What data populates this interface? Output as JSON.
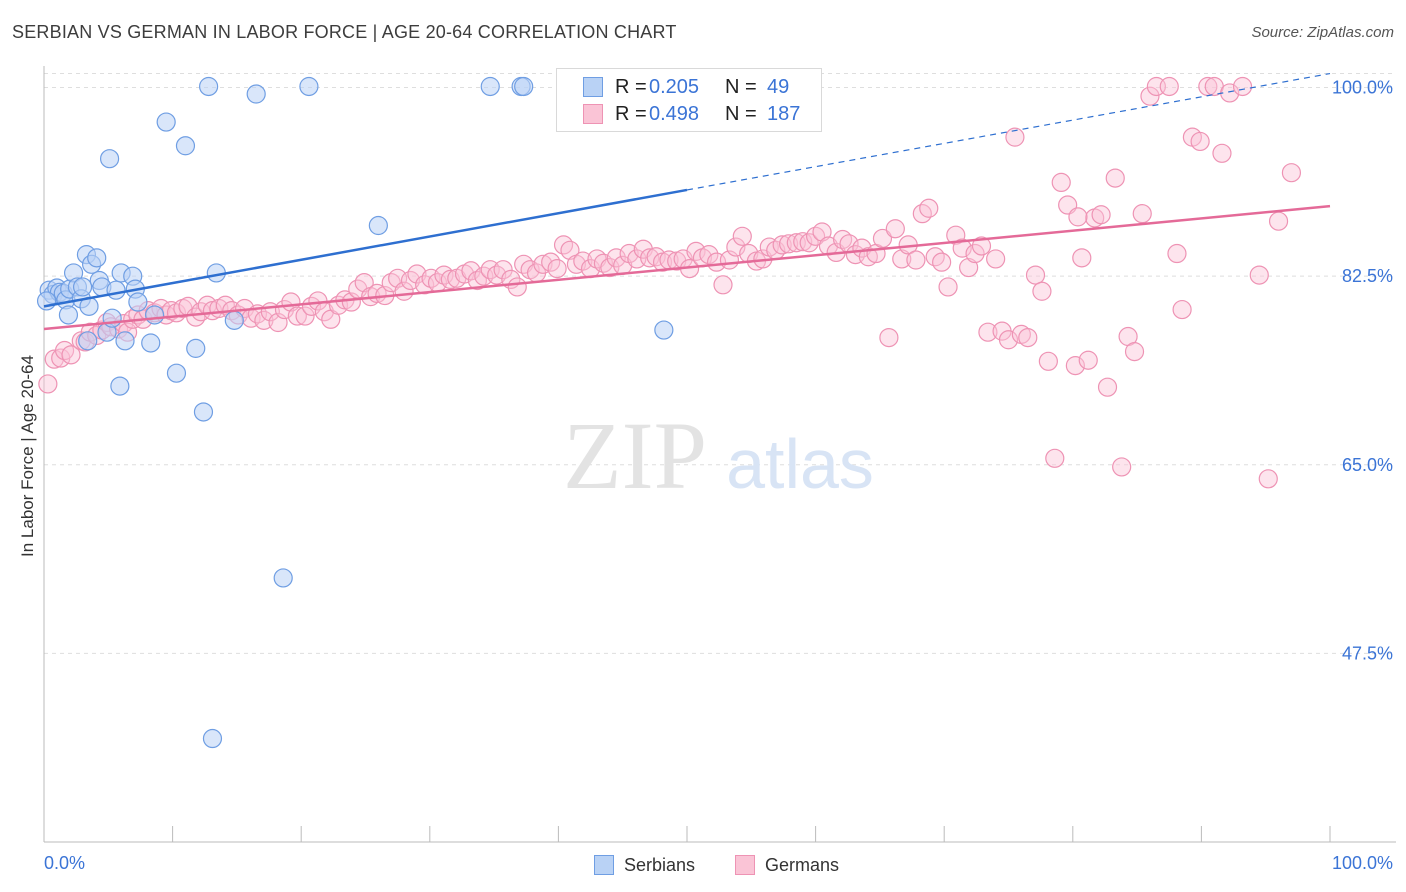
{
  "title": "SERBIAN VS GERMAN IN LABOR FORCE | AGE 20-64 CORRELATION CHART",
  "source": "Source: ZipAtlas.com",
  "watermark": {
    "zip": "ZIP",
    "atlas": "atlas"
  },
  "legend_stats": [
    {
      "r_label": "R =",
      "r_value": "0.205",
      "n_label": "N =",
      "n_value": "49",
      "color_fill": "#b9d2f5",
      "color_stroke": "#6f9ee3"
    },
    {
      "r_label": "R =",
      "r_value": "0.498",
      "n_label": "N =",
      "n_value": "187",
      "color_fill": "#fac4d6",
      "color_stroke": "#ee93b4"
    }
  ],
  "colors": {
    "blue_line": "#2e6fd0",
    "pink_line": "#e46a98",
    "tick_label": "#3b74d6",
    "grid": "#dedede"
  },
  "chart_data": {
    "type": "scatter",
    "xlabel": "",
    "ylabel": "In Labor Force | Age 20-64",
    "xlim": [
      0,
      100
    ],
    "ylim": [
      30,
      102
    ],
    "y_ticks": [
      47.5,
      65.0,
      82.5,
      100.0
    ],
    "y_tick_labels": [
      "47.5%",
      "65.0%",
      "82.5%",
      "100.0%"
    ],
    "x_tick_labels": [
      "0.0%",
      "100.0%"
    ],
    "grid": "horizontal dashed",
    "legend": "bottom-center",
    "series": [
      {
        "name": "Serbians",
        "color": "#6f9ee3",
        "fill": "#b9d2f5",
        "trend": {
          "x0": 0,
          "y0": 79.7,
          "x1": 50,
          "y1": 90.5,
          "dashed_to_x": 100,
          "dashed_to_y": 101.3
        },
        "points": [
          [
            0.4,
            81.2
          ],
          [
            0.7,
            80.8
          ],
          [
            1.0,
            81.4
          ],
          [
            1.2,
            81.0
          ],
          [
            1.5,
            80.9
          ],
          [
            1.7,
            80.3
          ],
          [
            1.9,
            78.9
          ],
          [
            2.0,
            81.3
          ],
          [
            2.3,
            82.8
          ],
          [
            2.6,
            81.5
          ],
          [
            2.9,
            80.4
          ],
          [
            3.0,
            81.5
          ],
          [
            3.3,
            84.5
          ],
          [
            3.4,
            76.5
          ],
          [
            3.5,
            79.7
          ],
          [
            3.7,
            83.6
          ],
          [
            4.1,
            84.2
          ],
          [
            4.3,
            82.1
          ],
          [
            4.5,
            81.5
          ],
          [
            4.9,
            77.3
          ],
          [
            5.1,
            93.4
          ],
          [
            5.3,
            78.6
          ],
          [
            5.6,
            81.2
          ],
          [
            5.9,
            72.3
          ],
          [
            6.0,
            82.8
          ],
          [
            6.3,
            76.5
          ],
          [
            6.9,
            82.5
          ],
          [
            7.1,
            81.3
          ],
          [
            7.3,
            80.1
          ],
          [
            8.3,
            76.3
          ],
          [
            8.6,
            78.9
          ],
          [
            9.5,
            96.8
          ],
          [
            10.3,
            73.5
          ],
          [
            11.0,
            94.6
          ],
          [
            11.8,
            75.8
          ],
          [
            12.4,
            69.9
          ],
          [
            12.8,
            100.1
          ],
          [
            13.1,
            39.6
          ],
          [
            13.4,
            82.8
          ],
          [
            14.8,
            78.4
          ],
          [
            16.5,
            99.4
          ],
          [
            18.6,
            54.5
          ],
          [
            20.6,
            100.1
          ],
          [
            26.0,
            87.2
          ],
          [
            34.7,
            100.1
          ],
          [
            37.1,
            100.1
          ],
          [
            37.3,
            100.1
          ],
          [
            48.2,
            77.5
          ],
          [
            0.2,
            80.2
          ]
        ]
      },
      {
        "name": "Germans",
        "color": "#ee93b4",
        "fill": "#fac4d6",
        "trend": {
          "x0": 0,
          "y0": 77.6,
          "x1": 100,
          "y1": 89.0
        },
        "points": [
          [
            0.3,
            72.5
          ],
          [
            0.8,
            74.8
          ],
          [
            1.3,
            74.9
          ],
          [
            1.6,
            75.6
          ],
          [
            2.1,
            75.2
          ],
          [
            2.9,
            76.5
          ],
          [
            3.2,
            76.4
          ],
          [
            3.6,
            77.3
          ],
          [
            4.1,
            77.0
          ],
          [
            4.5,
            77.5
          ],
          [
            4.9,
            78.2
          ],
          [
            5.2,
            77.8
          ],
          [
            5.8,
            77.6
          ],
          [
            6.2,
            78.1
          ],
          [
            6.5,
            77.3
          ],
          [
            6.9,
            78.5
          ],
          [
            7.3,
            78.9
          ],
          [
            7.7,
            78.5
          ],
          [
            8.1,
            79.3
          ],
          [
            8.6,
            79.1
          ],
          [
            9.1,
            79.5
          ],
          [
            9.5,
            78.9
          ],
          [
            9.9,
            79.3
          ],
          [
            10.3,
            79.1
          ],
          [
            10.8,
            79.5
          ],
          [
            11.2,
            79.7
          ],
          [
            11.8,
            78.7
          ],
          [
            12.2,
            79.2
          ],
          [
            12.7,
            79.8
          ],
          [
            13.1,
            79.3
          ],
          [
            13.6,
            79.5
          ],
          [
            14.1,
            79.8
          ],
          [
            14.6,
            79.3
          ],
          [
            15.1,
            78.9
          ],
          [
            15.6,
            79.5
          ],
          [
            16.1,
            78.6
          ],
          [
            16.6,
            79.0
          ],
          [
            17.1,
            78.4
          ],
          [
            17.6,
            79.2
          ],
          [
            18.2,
            78.2
          ],
          [
            18.7,
            79.4
          ],
          [
            19.2,
            80.1
          ],
          [
            19.7,
            78.8
          ],
          [
            20.3,
            78.8
          ],
          [
            20.8,
            79.7
          ],
          [
            21.3,
            80.2
          ],
          [
            21.8,
            79.2
          ],
          [
            22.3,
            78.5
          ],
          [
            22.9,
            79.8
          ],
          [
            23.4,
            80.3
          ],
          [
            23.9,
            80.1
          ],
          [
            24.4,
            81.3
          ],
          [
            24.9,
            81.9
          ],
          [
            25.4,
            80.6
          ],
          [
            25.9,
            80.9
          ],
          [
            26.5,
            80.7
          ],
          [
            27.0,
            81.9
          ],
          [
            27.5,
            82.3
          ],
          [
            28.0,
            81.1
          ],
          [
            28.5,
            82.1
          ],
          [
            29.0,
            82.7
          ],
          [
            29.6,
            81.7
          ],
          [
            30.1,
            82.3
          ],
          [
            30.6,
            81.9
          ],
          [
            31.1,
            82.6
          ],
          [
            31.6,
            82.2
          ],
          [
            32.1,
            82.3
          ],
          [
            32.7,
            82.7
          ],
          [
            33.2,
            83.0
          ],
          [
            33.7,
            82.1
          ],
          [
            34.2,
            82.5
          ],
          [
            34.7,
            83.1
          ],
          [
            35.2,
            82.6
          ],
          [
            35.7,
            83.1
          ],
          [
            36.3,
            82.2
          ],
          [
            36.8,
            81.5
          ],
          [
            37.3,
            83.6
          ],
          [
            37.8,
            83.1
          ],
          [
            38.3,
            82.8
          ],
          [
            38.8,
            83.6
          ],
          [
            39.4,
            83.8
          ],
          [
            39.9,
            83.2
          ],
          [
            40.4,
            85.4
          ],
          [
            40.9,
            84.9
          ],
          [
            41.4,
            83.6
          ],
          [
            41.9,
            83.9
          ],
          [
            42.5,
            83.2
          ],
          [
            43.0,
            84.1
          ],
          [
            43.5,
            83.7
          ],
          [
            44.0,
            83.3
          ],
          [
            44.5,
            84.2
          ],
          [
            45.0,
            83.5
          ],
          [
            45.5,
            84.6
          ],
          [
            46.1,
            84.1
          ],
          [
            46.6,
            85.0
          ],
          [
            47.1,
            84.2
          ],
          [
            47.6,
            84.3
          ],
          [
            48.1,
            83.8
          ],
          [
            48.6,
            84.0
          ],
          [
            49.2,
            83.9
          ],
          [
            49.7,
            84.1
          ],
          [
            50.2,
            83.2
          ],
          [
            50.7,
            84.8
          ],
          [
            51.2,
            84.2
          ],
          [
            51.7,
            84.5
          ],
          [
            52.3,
            83.8
          ],
          [
            52.8,
            81.7
          ],
          [
            53.3,
            84.0
          ],
          [
            53.8,
            85.2
          ],
          [
            54.3,
            86.2
          ],
          [
            54.8,
            84.6
          ],
          [
            55.4,
            83.9
          ],
          [
            55.9,
            84.1
          ],
          [
            56.4,
            85.2
          ],
          [
            56.9,
            84.9
          ],
          [
            57.4,
            85.4
          ],
          [
            57.9,
            85.5
          ],
          [
            58.5,
            85.6
          ],
          [
            59.0,
            85.7
          ],
          [
            59.5,
            85.6
          ],
          [
            60.0,
            86.2
          ],
          [
            60.5,
            86.6
          ],
          [
            61.0,
            85.3
          ],
          [
            61.6,
            84.7
          ],
          [
            62.1,
            85.9
          ],
          [
            62.6,
            85.5
          ],
          [
            63.1,
            84.5
          ],
          [
            63.6,
            85.1
          ],
          [
            64.1,
            84.3
          ],
          [
            64.7,
            84.6
          ],
          [
            65.2,
            86.0
          ],
          [
            65.7,
            76.8
          ],
          [
            66.2,
            86.9
          ],
          [
            66.7,
            84.1
          ],
          [
            67.2,
            85.4
          ],
          [
            67.8,
            84.0
          ],
          [
            68.3,
            88.3
          ],
          [
            68.8,
            88.8
          ],
          [
            69.3,
            84.3
          ],
          [
            69.8,
            83.8
          ],
          [
            70.3,
            81.5
          ],
          [
            70.9,
            86.3
          ],
          [
            71.4,
            85.1
          ],
          [
            71.9,
            83.3
          ],
          [
            72.4,
            84.6
          ],
          [
            72.9,
            85.3
          ],
          [
            73.4,
            77.3
          ],
          [
            74.0,
            84.1
          ],
          [
            74.5,
            77.4
          ],
          [
            75.0,
            76.6
          ],
          [
            75.5,
            95.4
          ],
          [
            76.0,
            77.1
          ],
          [
            76.5,
            76.8
          ],
          [
            77.1,
            82.6
          ],
          [
            77.6,
            81.1
          ],
          [
            78.1,
            74.6
          ],
          [
            78.6,
            65.6
          ],
          [
            79.1,
            91.2
          ],
          [
            79.6,
            89.1
          ],
          [
            80.2,
            74.2
          ],
          [
            80.7,
            84.2
          ],
          [
            81.2,
            74.7
          ],
          [
            81.7,
            87.9
          ],
          [
            82.2,
            88.2
          ],
          [
            82.7,
            72.2
          ],
          [
            83.3,
            91.6
          ],
          [
            83.8,
            64.8
          ],
          [
            84.3,
            76.9
          ],
          [
            84.8,
            75.5
          ],
          [
            85.4,
            88.3
          ],
          [
            86.0,
            99.2
          ],
          [
            86.5,
            100.1
          ],
          [
            87.5,
            100.1
          ],
          [
            88.1,
            84.6
          ],
          [
            88.5,
            79.4
          ],
          [
            89.3,
            95.4
          ],
          [
            89.9,
            95.0
          ],
          [
            90.5,
            100.1
          ],
          [
            91.0,
            100.1
          ],
          [
            91.6,
            93.9
          ],
          [
            92.2,
            99.5
          ],
          [
            93.2,
            100.1
          ],
          [
            94.5,
            82.6
          ],
          [
            95.2,
            63.7
          ],
          [
            96.0,
            87.6
          ],
          [
            97.0,
            92.1
          ],
          [
            80.4,
            88.0
          ]
        ]
      }
    ]
  }
}
